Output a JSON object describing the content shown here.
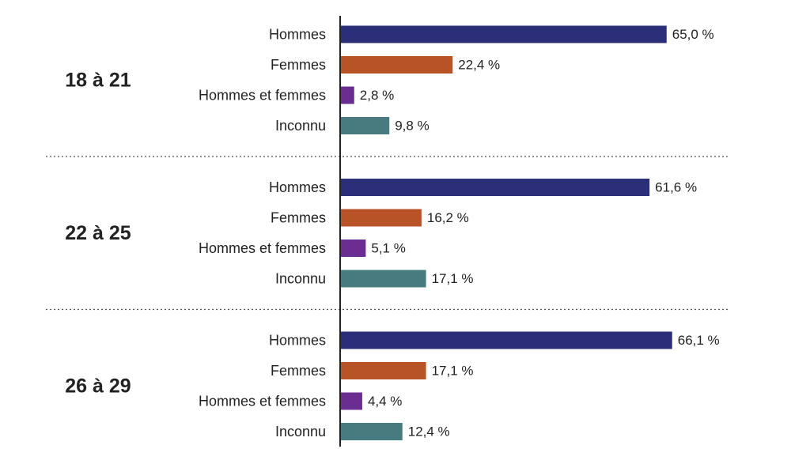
{
  "chart_data": {
    "type": "bar",
    "orientation": "horizontal",
    "title": "",
    "xlabel": "",
    "ylabel": "",
    "xlim": [
      0,
      70
    ],
    "grid": false,
    "legend": "none",
    "value_suffix": " %",
    "groups": [
      {
        "name": "18 à 21",
        "bars": [
          {
            "label": "Hommes",
            "value": 65.0,
            "display": "65,0 %"
          },
          {
            "label": "Femmes",
            "value": 22.4,
            "display": "22,4 %"
          },
          {
            "label": "Hommes et femmes",
            "value": 2.8,
            "display": "2,8 %"
          },
          {
            "label": "Inconnu",
            "value": 9.8,
            "display": "9,8 %"
          }
        ]
      },
      {
        "name": "22 à 25",
        "bars": [
          {
            "label": "Hommes",
            "value": 61.6,
            "display": "61,6 %"
          },
          {
            "label": "Femmes",
            "value": 16.2,
            "display": "16,2 %"
          },
          {
            "label": "Hommes et femmes",
            "value": 5.1,
            "display": "5,1 %"
          },
          {
            "label": "Inconnu",
            "value": 17.1,
            "display": "17,1 %"
          }
        ]
      },
      {
        "name": "26 à 29",
        "bars": [
          {
            "label": "Hommes",
            "value": 66.1,
            "display": "66,1 %"
          },
          {
            "label": "Femmes",
            "value": 17.1,
            "display": "17,1 %"
          },
          {
            "label": "Hommes et femmes",
            "value": 4.4,
            "display": "4,4 %"
          },
          {
            "label": "Inconnu",
            "value": 12.4,
            "display": "12,4 %"
          }
        ]
      }
    ],
    "colors": {
      "Hommes": "#2b2f78",
      "Femmes": "#b85227",
      "Hommes et femmes": "#6a2d92",
      "Inconnu": "#477b80"
    }
  }
}
